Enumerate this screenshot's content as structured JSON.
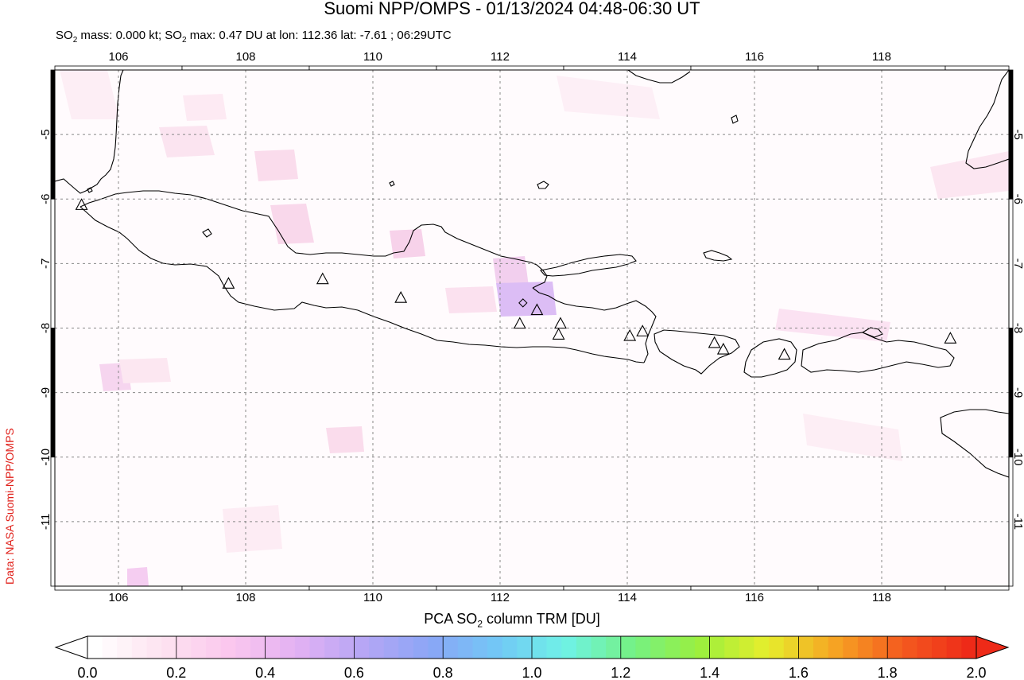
{
  "header": {
    "title": "Suomi NPP/OMPS - 01/13/2024 04:48-06:30 UT",
    "subtitle_prefix": "SO",
    "subtitle_sub1": "2",
    "subtitle_mid": " mass: 0.000 kt; SO",
    "subtitle_sub2": "2",
    "subtitle_suffix": " max: 0.47 DU at lon: 112.36 lat: -7.61 ; 06:29UTC"
  },
  "credit": "Data: NASA Suomi-NPP/OMPS",
  "map": {
    "lon_range": [
      105,
      120
    ],
    "lat_range": [
      -12,
      -4
    ],
    "lon_ticks": [
      "106",
      "108",
      "110",
      "112",
      "114",
      "116",
      "118"
    ],
    "lat_ticks": [
      "-5",
      "-6",
      "-7",
      "-8",
      "-9",
      "-10",
      "-11"
    ],
    "volcano_marker": "triangle-icon",
    "volcanoes": [
      {
        "lon": 105.42,
        "lat": -6.1
      },
      {
        "lon": 107.73,
        "lat": -7.32
      },
      {
        "lon": 109.21,
        "lat": -7.25
      },
      {
        "lon": 110.44,
        "lat": -7.54
      },
      {
        "lon": 112.31,
        "lat": -7.94
      },
      {
        "lon": 112.58,
        "lat": -7.73
      },
      {
        "lon": 112.95,
        "lat": -7.94
      },
      {
        "lon": 112.92,
        "lat": -8.11
      },
      {
        "lon": 114.04,
        "lat": -8.13
      },
      {
        "lon": 114.24,
        "lat": -8.06
      },
      {
        "lon": 115.37,
        "lat": -8.24
      },
      {
        "lon": 115.51,
        "lat": -8.34
      },
      {
        "lon": 116.47,
        "lat": -8.42
      },
      {
        "lon": 119.08,
        "lat": -8.17
      }
    ],
    "so2_max_location": {
      "lon": 112.36,
      "lat": -7.61,
      "value_du": 0.47
    }
  },
  "colorbar": {
    "title_prefix": "PCA SO",
    "title_sub": "2",
    "title_suffix": " column TRM [DU]",
    "tick_labels": [
      "0.0",
      "0.2",
      "0.4",
      "0.6",
      "0.8",
      "1.0",
      "1.2",
      "1.4",
      "1.6",
      "1.8",
      "2.0"
    ],
    "colors": [
      "#ffffff",
      "#fde3f0",
      "#fbc7ee",
      "#e3b1f3",
      "#b5a6f5",
      "#8aa6f6",
      "#72c8f6",
      "#6ff2e6",
      "#74f184",
      "#9bef3e",
      "#e6ee2c",
      "#f6a423",
      "#f45b1f",
      "#ee2a18"
    ]
  }
}
